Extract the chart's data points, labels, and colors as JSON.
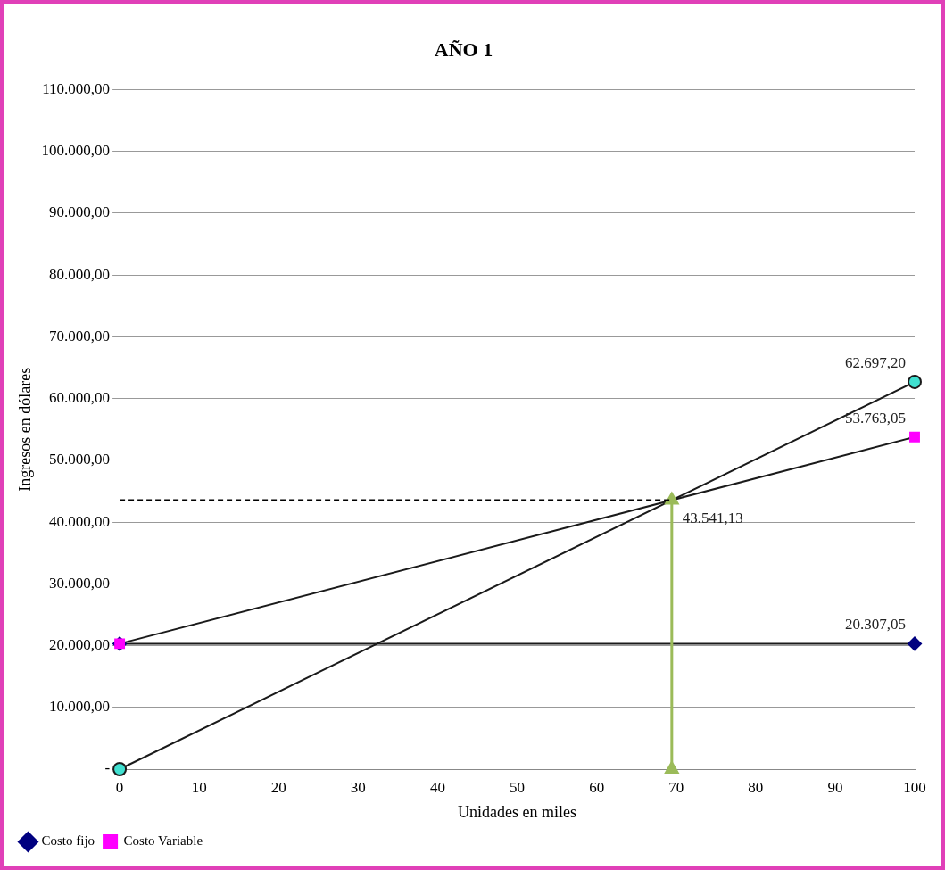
{
  "chart_data": {
    "type": "line",
    "title": "AÑO 1",
    "xlabel": "Unidades en miles",
    "ylabel": "Ingresos en dólares",
    "xlim": [
      0,
      100
    ],
    "xticks": [
      0,
      10,
      20,
      30,
      40,
      50,
      60,
      70,
      80,
      90,
      100
    ],
    "ylim": [
      0,
      110000
    ],
    "yticks": [
      {
        "value": 0,
        "label": "-"
      },
      {
        "value": 10000,
        "label": "10.000,00"
      },
      {
        "value": 20000,
        "label": "20.000,00"
      },
      {
        "value": 30000,
        "label": "30.000,00"
      },
      {
        "value": 40000,
        "label": "40.000,00"
      },
      {
        "value": 50000,
        "label": "50.000,00"
      },
      {
        "value": 60000,
        "label": "60.000,00"
      },
      {
        "value": 70000,
        "label": "70.000,00"
      },
      {
        "value": 80000,
        "label": "80.000,00"
      },
      {
        "value": 90000,
        "label": "90.000,00"
      },
      {
        "value": 100000,
        "label": "100.000,00"
      },
      {
        "value": 110000,
        "label": "110.000,00"
      }
    ],
    "grid": "y",
    "legend": "bottom left",
    "series": [
      {
        "name": "Costo fijo",
        "color": "#000080",
        "marker": "diamond",
        "x": [
          0,
          100
        ],
        "values": [
          20307.05,
          20307.05
        ],
        "value_labels": [
          null,
          "20.307,05"
        ]
      },
      {
        "name": "Costo Variable",
        "color": "#ff00ff",
        "marker": "square",
        "x": [
          0,
          100
        ],
        "values": [
          20307.05,
          53763.05
        ],
        "value_labels": [
          null,
          "53.763,05"
        ]
      },
      {
        "color": "#40e0d0",
        "marker": "circle",
        "x": [
          0,
          100
        ],
        "values": [
          0,
          62697.2
        ],
        "value_labels": [
          null,
          "62.697,20"
        ]
      },
      {
        "color": "#9bbb59",
        "marker": "triangle",
        "x": [
          69.45,
          69.45
        ],
        "values": [
          0,
          43541.13
        ],
        "value_labels": [
          null,
          "43.541,13"
        ]
      },
      {
        "color": "#000000",
        "marker": "none",
        "line_style": "dashed",
        "x": [
          0,
          69.45
        ],
        "values": [
          43541.13,
          43541.13
        ]
      }
    ]
  }
}
